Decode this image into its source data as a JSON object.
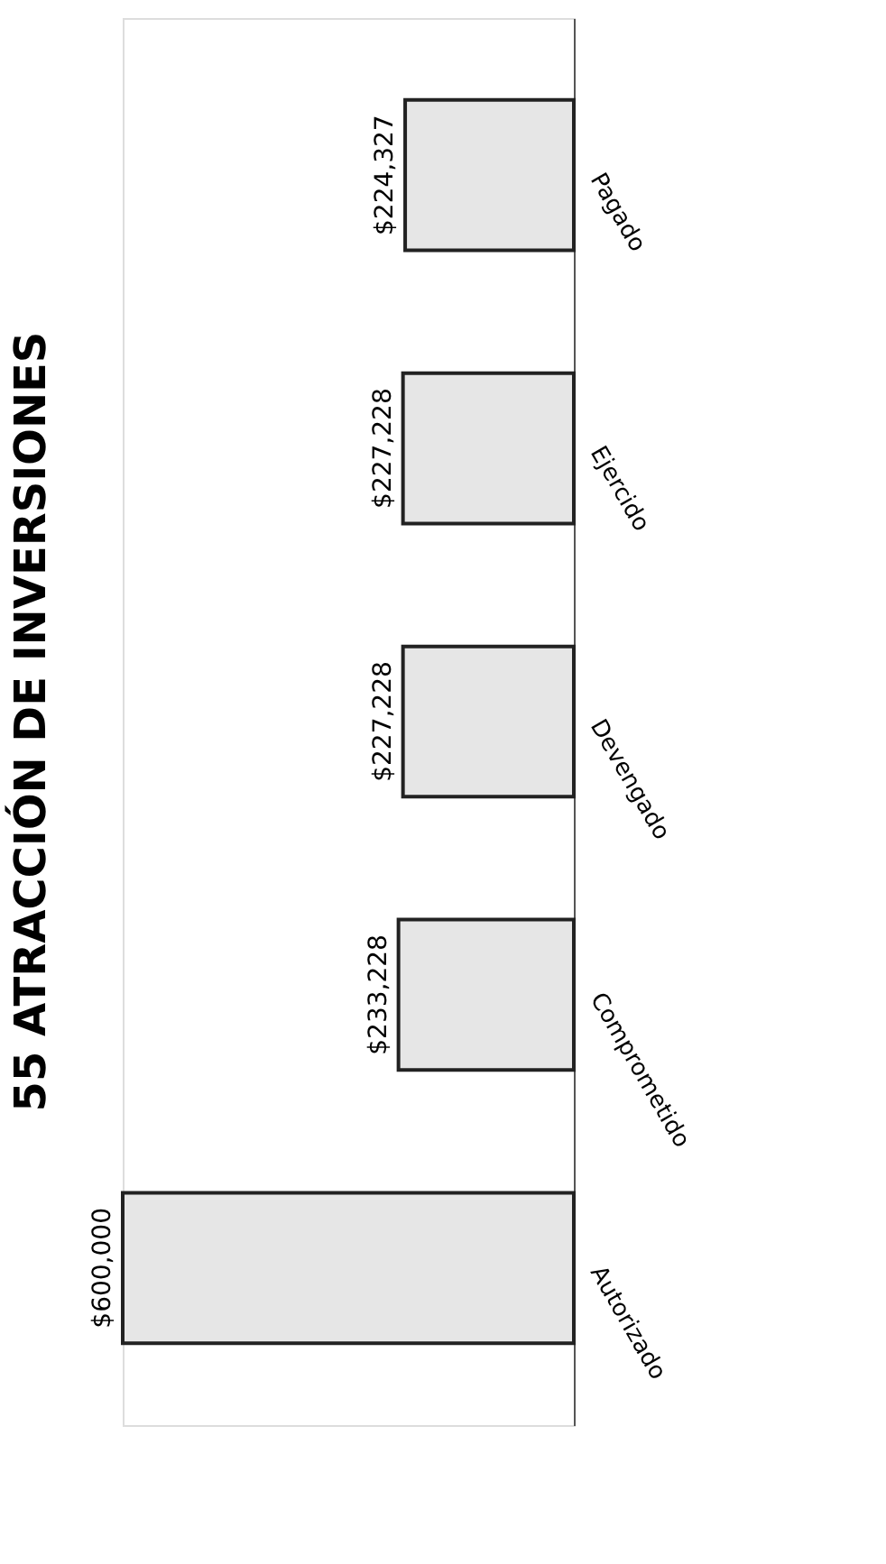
{
  "chart_data": {
    "type": "bar",
    "title": "55 ATRACCIÓN DE INVERSIONES",
    "orientation": "horizontal",
    "categories": [
      "Pagado",
      "Ejercido",
      "Devengado",
      "Comprometido",
      "Autorizado"
    ],
    "values": [
      224327,
      227228,
      227228,
      233228,
      600000
    ],
    "value_labels": [
      "$224,327",
      "$227,228",
      "$227,228",
      "$233,228",
      "$600,000"
    ],
    "color": "#e6e6e6"
  }
}
